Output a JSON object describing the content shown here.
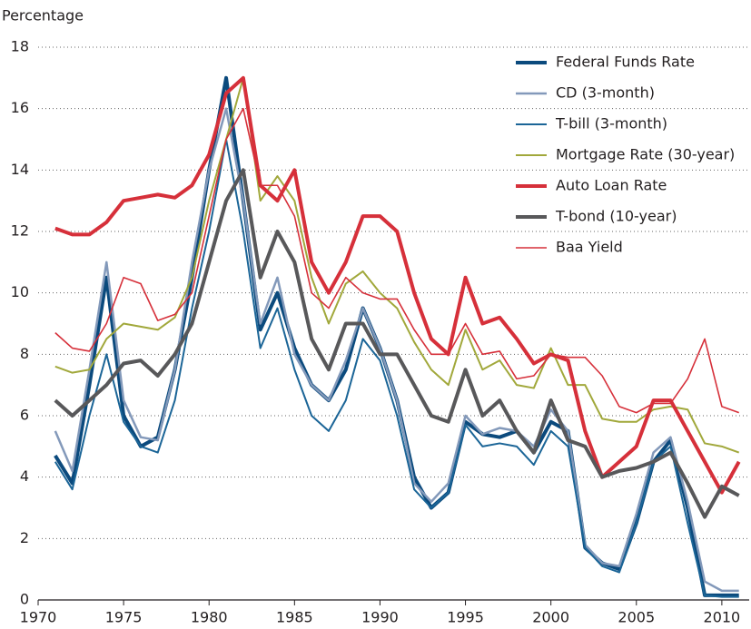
{
  "chart_data": {
    "type": "line",
    "y_label": "Percentage",
    "x": [
      1971,
      1972,
      1973,
      1974,
      1975,
      1976,
      1977,
      1978,
      1979,
      1980,
      1981,
      1982,
      1983,
      1984,
      1985,
      1986,
      1987,
      1988,
      1989,
      1990,
      1991,
      1992,
      1993,
      1994,
      1995,
      1996,
      1997,
      1998,
      1999,
      2000,
      2001,
      2002,
      2003,
      2004,
      2005,
      2006,
      2007,
      2008,
      2009,
      2010,
      2011
    ],
    "xlim": [
      1970,
      2011.6
    ],
    "xticks": [
      1970,
      1975,
      1980,
      1985,
      1990,
      1995,
      2000,
      2005,
      2010
    ],
    "ylim": [
      0,
      18
    ],
    "yticks": [
      0,
      2,
      4,
      6,
      8,
      10,
      12,
      14,
      16,
      18
    ],
    "grid": true,
    "legend": "upper right",
    "series": [
      {
        "name": "Federal Funds Rate",
        "color": "#0b4a7d",
        "width": 4,
        "values": [
          4.7,
          3.8,
          7,
          10.5,
          6,
          5,
          5.3,
          7.5,
          10.5,
          14,
          17,
          13,
          8.8,
          10,
          8.2,
          7,
          6.5,
          7.5,
          9.5,
          8.2,
          6.5,
          4,
          3,
          3.5,
          5.8,
          5.4,
          5.3,
          5.5,
          4.8,
          5.8,
          5.5,
          1.7,
          1.2,
          1,
          2.5,
          4.5,
          5.2,
          3,
          0.15,
          0.15,
          0.15
        ]
      },
      {
        "name": "CD (3-month)",
        "color": "#8399ba",
        "width": 2.5,
        "values": [
          5.5,
          4.2,
          7.5,
          11,
          6.5,
          5.3,
          5.2,
          7.5,
          11,
          14,
          16,
          13,
          9,
          10.5,
          8,
          7,
          6.5,
          7.8,
          9.5,
          8.2,
          6.5,
          3.8,
          3.2,
          3.8,
          6,
          5.4,
          5.6,
          5.5,
          5,
          6.2,
          5.5,
          1.8,
          1.2,
          1.1,
          2.8,
          4.8,
          5.3,
          3.2,
          0.6,
          0.3,
          0.3
        ]
      },
      {
        "name": "T-bill (3-month)",
        "color": "#1b6597",
        "width": 2,
        "values": [
          4.5,
          3.6,
          6,
          8,
          5.8,
          5,
          4.8,
          6.5,
          9.5,
          12,
          15,
          12,
          8.2,
          9.5,
          7.5,
          6,
          5.5,
          6.5,
          8.5,
          7.8,
          6,
          3.6,
          3,
          3.5,
          5.7,
          5,
          5.1,
          5,
          4.4,
          5.5,
          5,
          1.7,
          1.1,
          0.9,
          2.5,
          4.5,
          5,
          2.5,
          0.15,
          0.1,
          0.1
        ]
      },
      {
        "name": "Mortgage Rate (30-year)",
        "color": "#a1a83b",
        "width": 2,
        "values": [
          7.6,
          7.4,
          7.5,
          8.5,
          9,
          8.9,
          8.8,
          9.2,
          10.5,
          13,
          15,
          17,
          13,
          13.8,
          13,
          10.5,
          9,
          10.3,
          10.7,
          10,
          9.5,
          8.4,
          7.5,
          7,
          8.8,
          7.5,
          7.8,
          7,
          6.9,
          8.2,
          7,
          7,
          5.9,
          5.8,
          5.8,
          6.2,
          6.3,
          6.2,
          5.1,
          5,
          4.8
        ]
      },
      {
        "name": "Auto Loan Rate",
        "color": "#d6303a",
        "width": 4,
        "values": [
          12.1,
          11.9,
          11.9,
          12.3,
          13,
          13.1,
          13.2,
          13.1,
          13.5,
          14.5,
          16.5,
          17,
          13.5,
          13,
          14,
          11,
          10,
          11,
          12.5,
          12.5,
          12,
          10,
          8.5,
          8,
          10.5,
          9,
          9.2,
          8.5,
          7.7,
          8,
          7.8,
          5.5,
          4,
          4.5,
          5,
          6.5,
          6.5,
          5.5,
          4.5,
          3.5,
          4.5
        ]
      },
      {
        "name": "T-bond (10-year)",
        "color": "#58585a",
        "width": 4,
        "values": [
          6.5,
          6,
          6.5,
          7,
          7.7,
          7.8,
          7.3,
          8,
          9,
          11,
          13,
          14,
          10.5,
          12,
          11,
          8.5,
          7.5,
          9,
          9,
          8,
          8,
          7,
          6,
          5.8,
          7.5,
          6,
          6.5,
          5.5,
          4.8,
          6.5,
          5.2,
          5,
          4,
          4.2,
          4.3,
          4.5,
          4.8,
          3.8,
          2.7,
          3.7,
          3.4
        ]
      },
      {
        "name": "Baa Yield",
        "color": "#d6303a",
        "width": 1.6,
        "values": [
          8.7,
          8.2,
          8.1,
          9,
          10.5,
          10.3,
          9.1,
          9.3,
          10,
          12.5,
          15,
          16,
          13.5,
          13.5,
          12.5,
          10,
          9.5,
          10.5,
          10,
          9.8,
          9.8,
          8.8,
          8,
          8,
          9,
          8,
          8.1,
          7.2,
          7.3,
          8,
          7.9,
          7.9,
          7.3,
          6.3,
          6.1,
          6.4,
          6.4,
          7.2,
          8.5,
          6.3,
          6.1
        ]
      }
    ]
  }
}
